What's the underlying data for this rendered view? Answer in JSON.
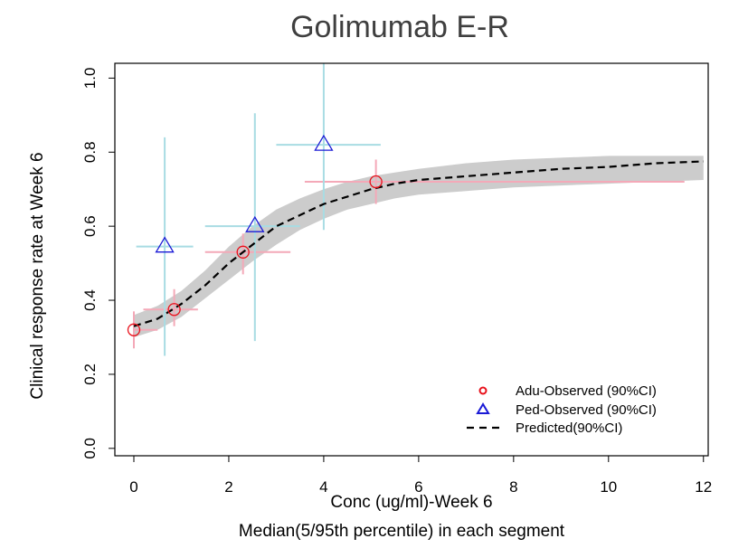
{
  "chart_data": {
    "type": "scatter",
    "title": "Golimumab E-R",
    "xlabel": "Conc (ug/ml)-Week 6",
    "xlabel_sub": "Median(5/95th percentile) in each segment",
    "ylabel": "Clinical response rate at Week 6",
    "xlim": [
      -0.4,
      12.1
    ],
    "ylim": [
      -0.02,
      1.04
    ],
    "x_ticks": [
      0,
      2,
      4,
      6,
      8,
      10,
      12
    ],
    "y_ticks": [
      0.0,
      0.2,
      0.4,
      0.6,
      0.8,
      1.0
    ],
    "y_tick_labels": [
      "0.0",
      "0.2",
      "0.4",
      "0.6",
      "0.8",
      "1.0"
    ],
    "legend_position": "bottom-right",
    "series": [
      {
        "name": "Adu-Observed (90%CI)",
        "marker": "circle",
        "color": "#e8101a",
        "errorbar_color": "#f4a9b8",
        "points": [
          {
            "x": 0.0,
            "y": 0.32,
            "x_low": 0.0,
            "x_high": 0.5,
            "y_low": 0.27,
            "y_high": 0.37
          },
          {
            "x": 0.85,
            "y": 0.375,
            "x_low": 0.2,
            "x_high": 1.35,
            "y_low": 0.33,
            "y_high": 0.43
          },
          {
            "x": 2.3,
            "y": 0.53,
            "x_low": 1.5,
            "x_high": 3.3,
            "y_low": 0.47,
            "y_high": 0.58
          },
          {
            "x": 5.1,
            "y": 0.72,
            "x_low": 3.6,
            "x_high": 11.6,
            "y_low": 0.66,
            "y_high": 0.78
          }
        ]
      },
      {
        "name": "Ped-Observed (90%CI)",
        "marker": "triangle",
        "color": "#1a1ad6",
        "errorbar_color": "#a8dce3",
        "points": [
          {
            "x": 0.65,
            "y": 0.545,
            "x_low": 0.05,
            "x_high": 1.25,
            "y_low": 0.25,
            "y_high": 0.84
          },
          {
            "x": 2.55,
            "y": 0.6,
            "x_low": 1.5,
            "x_high": 3.5,
            "y_low": 0.29,
            "y_high": 0.905
          },
          {
            "x": 4.0,
            "y": 0.82,
            "x_low": 3.0,
            "x_high": 5.2,
            "y_low": 0.59,
            "y_high": 1.05
          }
        ]
      },
      {
        "name": "Predicted(90%CI)",
        "type": "line",
        "style": "dashed",
        "color": "#000000",
        "band_color": "#cccccc",
        "x": [
          0,
          0.5,
          1,
          1.5,
          2,
          2.5,
          3,
          3.5,
          4,
          4.5,
          5,
          5.5,
          6,
          7,
          8,
          9,
          10,
          11,
          12
        ],
        "y": [
          0.33,
          0.35,
          0.39,
          0.44,
          0.5,
          0.55,
          0.6,
          0.63,
          0.66,
          0.68,
          0.7,
          0.715,
          0.725,
          0.735,
          0.745,
          0.755,
          0.76,
          0.77,
          0.775
        ],
        "y_lower": [
          0.3,
          0.32,
          0.355,
          0.405,
          0.455,
          0.505,
          0.55,
          0.59,
          0.62,
          0.645,
          0.66,
          0.675,
          0.685,
          0.695,
          0.705,
          0.71,
          0.715,
          0.72,
          0.725
        ],
        "y_upper": [
          0.36,
          0.385,
          0.425,
          0.48,
          0.545,
          0.6,
          0.645,
          0.675,
          0.7,
          0.72,
          0.735,
          0.745,
          0.755,
          0.77,
          0.78,
          0.785,
          0.79,
          0.79,
          0.79
        ]
      }
    ]
  }
}
